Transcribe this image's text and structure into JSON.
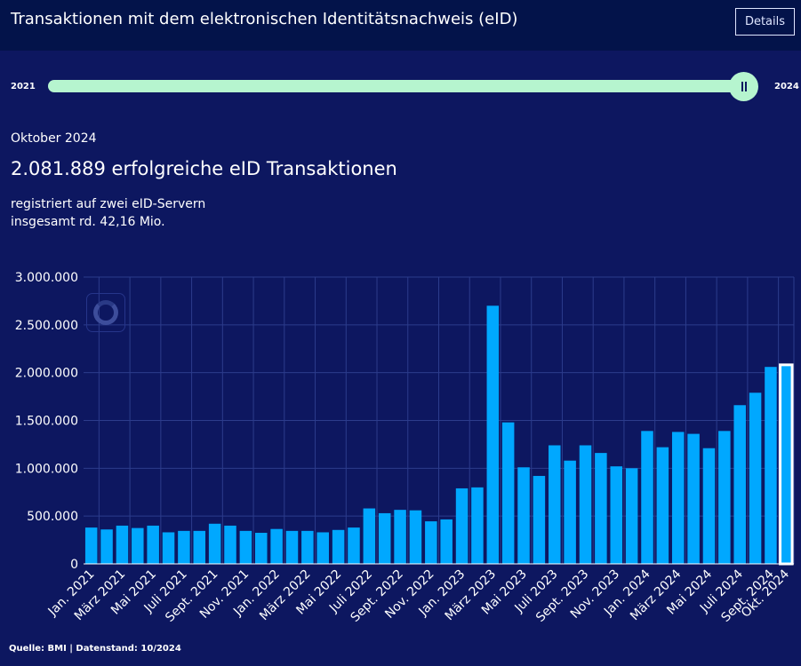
{
  "header": {
    "title": "Transaktionen mit dem elektronischen Identitätsnachweis (eID)",
    "details_label": "Details"
  },
  "slider": {
    "start_label": "2021",
    "end_label": "2024",
    "position": 1.0,
    "button_icon": "pause-icon"
  },
  "summary": {
    "month": "Oktober 2024",
    "headline": "2.081.889 erfolgreiche eID Transaktionen",
    "line1": "registriert auf zwei eID-Servern",
    "line2": "insgesamt rd. 42,16 Mio."
  },
  "source": "Quelle: BMI | Datenstand: 10/2024",
  "colors": {
    "bar": "#00a8ff",
    "highlight_bar": "#00a8ff",
    "highlight_outline": "#ffffff",
    "background": "#0d1760",
    "header": "#03134a",
    "slider": "#b6f5cf"
  },
  "chart_data": {
    "type": "bar",
    "categories": [
      "Jan. 2021",
      "Feb. 2021",
      "März 2021",
      "Apr. 2021",
      "Mai 2021",
      "Juni 2021",
      "Juli 2021",
      "Aug. 2021",
      "Sept. 2021",
      "Okt. 2021",
      "Nov. 2021",
      "Dez. 2021",
      "Jan. 2022",
      "Feb. 2022",
      "März 2022",
      "Apr. 2022",
      "Mai 2022",
      "Juni 2022",
      "Juli 2022",
      "Aug. 2022",
      "Sept. 2022",
      "Okt. 2022",
      "Nov. 2022",
      "Dez. 2022",
      "Jan. 2023",
      "Feb. 2023",
      "März 2023",
      "Apr. 2023",
      "Mai 2023",
      "Juni 2023",
      "Juli 2023",
      "Aug. 2023",
      "Sept. 2023",
      "Okt. 2023",
      "Nov. 2023",
      "Dez. 2023",
      "Jan. 2024",
      "Feb. 2024",
      "März 2024",
      "Apr. 2024",
      "Mai 2024",
      "Juni 2024",
      "Juli 2024",
      "Aug. 2024",
      "Sept. 2024",
      "Okt. 2024"
    ],
    "tick_labels": [
      "Jan. 2021",
      "März 2021",
      "Mai 2021",
      "Juli 2021",
      "Sept. 2021",
      "Nov. 2021",
      "Jan. 2022",
      "März 2022",
      "Mai 2022",
      "Juli 2022",
      "Sept. 2022",
      "Nov. 2022",
      "Jan. 2023",
      "März 2023",
      "Mai 2023",
      "Juli 2023",
      "Sept. 2023",
      "Nov. 2023",
      "Jan. 2024",
      "März 2024",
      "Mai 2024",
      "Juli 2024",
      "Sept. 2024",
      "Okt. 2024"
    ],
    "values": [
      380000,
      360000,
      400000,
      375000,
      400000,
      330000,
      345000,
      345000,
      420000,
      400000,
      345000,
      325000,
      365000,
      345000,
      345000,
      330000,
      355000,
      380000,
      580000,
      530000,
      565000,
      560000,
      445000,
      465000,
      790000,
      800000,
      2700000,
      1480000,
      1010000,
      920000,
      1240000,
      1080000,
      1240000,
      1160000,
      1020000,
      1000000,
      1390000,
      1220000,
      1380000,
      1360000,
      1210000,
      1390000,
      1660000,
      1790000,
      2060000,
      2081889
    ],
    "highlight_category": "Okt. 2024",
    "ylim": [
      0,
      3000000
    ],
    "yticks": [
      0,
      500000,
      1000000,
      1500000,
      2000000,
      2500000,
      3000000
    ],
    "ytick_labels": [
      "0",
      "500.000",
      "1.000.000",
      "1.500.000",
      "2.000.000",
      "2.500.000",
      "3.000.000"
    ],
    "grid": true,
    "title": "",
    "xlabel": "",
    "ylabel": ""
  }
}
